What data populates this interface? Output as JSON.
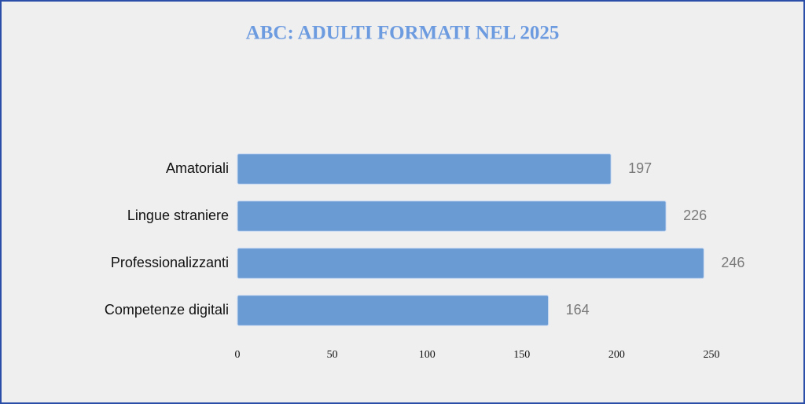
{
  "chart_data": {
    "type": "barh",
    "title": "ABC: ADULTI FORMATI NEL 2025",
    "categories": [
      "Amatoriali",
      "Lingue straniere",
      "Professionalizzanti",
      "Competenze digitali"
    ],
    "values": [
      197,
      226,
      246,
      164
    ],
    "color": "#6b9bd3",
    "xlim": [
      0,
      250
    ],
    "xticks": [
      0,
      50,
      100,
      150,
      200,
      250
    ],
    "grid": false
  }
}
